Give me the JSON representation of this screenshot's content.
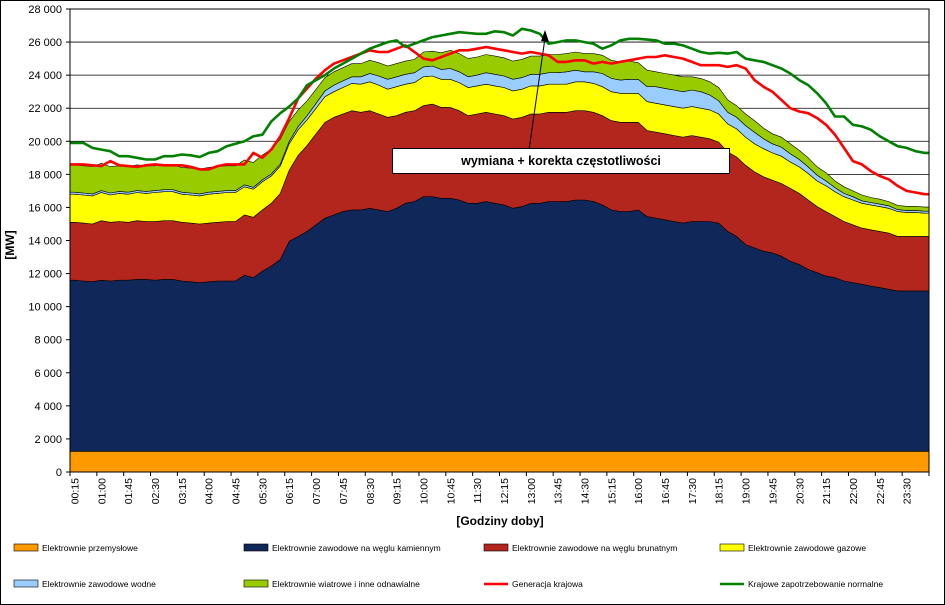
{
  "chart_data": {
    "type": "area",
    "xlabel": "[Godziny doby]",
    "ylabel": "[MW]",
    "ylim": [
      0,
      28000
    ],
    "yticks": [
      0,
      2000,
      4000,
      6000,
      8000,
      10000,
      12000,
      14000,
      16000,
      18000,
      20000,
      22000,
      24000,
      26000,
      28000
    ],
    "ytick_labels": [
      "0",
      "2 000",
      "4 000",
      "6 000",
      "8 000",
      "10 000",
      "12 000",
      "14 000",
      "16 000",
      "18 000",
      "20 000",
      "22 000",
      "24 000",
      "26 000",
      "28 000"
    ],
    "x_tick_labels": [
      "00:15",
      "01:00",
      "01:45",
      "02:30",
      "03:15",
      "04:00",
      "04:45",
      "05:30",
      "06:15",
      "07:00",
      "07:45",
      "08:30",
      "09:15",
      "10:00",
      "10:45",
      "11:30",
      "12:15",
      "13:00",
      "13:45",
      "14:30",
      "15:15",
      "16:00",
      "16:45",
      "17:30",
      "18:15",
      "19:00",
      "19:45",
      "20:30",
      "21:15",
      "22:00",
      "22:45",
      "23:30"
    ],
    "grid": true,
    "plot_background": "#ffffff",
    "annotation": "wymiana + korekta częstotliwości",
    "stack_series": [
      {
        "name": "Elektrownie przemysłowe",
        "color": "#ff9900",
        "values": [
          1250,
          1250,
          1250,
          1250,
          1250,
          1250,
          1250,
          1250,
          1250,
          1250,
          1250,
          1250,
          1250,
          1250,
          1250,
          1250,
          1250,
          1250,
          1250,
          1250,
          1250,
          1250,
          1250,
          1250,
          1250,
          1250,
          1250,
          1250,
          1250,
          1250,
          1250,
          1250,
          1250,
          1250,
          1250,
          1250,
          1250,
          1250,
          1250,
          1250,
          1250,
          1250,
          1250,
          1250,
          1250,
          1250,
          1250,
          1250,
          1250,
          1250,
          1250,
          1250,
          1250,
          1250,
          1250,
          1250,
          1250,
          1250,
          1250,
          1250,
          1250,
          1250,
          1250,
          1250,
          1250,
          1250,
          1250,
          1250,
          1250,
          1250,
          1250,
          1250,
          1250,
          1250,
          1250,
          1250,
          1250,
          1250,
          1250,
          1250,
          1250,
          1250,
          1250,
          1250,
          1250,
          1250,
          1250,
          1250,
          1250,
          1250,
          1250,
          1250,
          1250,
          1250,
          1250,
          1250
        ]
      },
      {
        "name": "Elektrownie zawodowe na węglu kamiennym",
        "color": "#10275a",
        "values": [
          10350,
          10300,
          10250,
          10350,
          10300,
          10350,
          10350,
          10400,
          10400,
          10350,
          10400,
          10400,
          10300,
          10250,
          10200,
          10250,
          10300,
          10300,
          10300,
          10650,
          10500,
          10900,
          11200,
          11600,
          12700,
          13000,
          13300,
          13700,
          14100,
          14300,
          14500,
          14600,
          14600,
          14700,
          14600,
          14500,
          14700,
          15000,
          15100,
          15400,
          15400,
          15300,
          15300,
          15200,
          15000,
          15000,
          15100,
          15000,
          14900,
          14700,
          14800,
          15000,
          15000,
          15100,
          15100,
          15100,
          15200,
          15200,
          15100,
          14900,
          14600,
          14500,
          14500,
          14600,
          14200,
          14100,
          14000,
          13900,
          13800,
          13900,
          13900,
          13900,
          13800,
          13300,
          13000,
          12500,
          12300,
          12100,
          12000,
          11800,
          11500,
          11300,
          11000,
          10800,
          10600,
          10500,
          10300,
          10200,
          10100,
          10000,
          9900,
          9800,
          9700,
          9700,
          9700,
          9700
        ]
      },
      {
        "name": "Elektrownie zawodowe na węglu brunatnym",
        "color": "#b3261e",
        "values": [
          3500,
          3500,
          3500,
          3600,
          3550,
          3550,
          3500,
          3550,
          3500,
          3550,
          3550,
          3550,
          3550,
          3550,
          3550,
          3550,
          3550,
          3600,
          3600,
          3650,
          3650,
          3700,
          3800,
          4000,
          4300,
          4900,
          5200,
          5500,
          5800,
          5900,
          5900,
          6000,
          5900,
          5900,
          5800,
          5700,
          5600,
          5500,
          5500,
          5500,
          5600,
          5500,
          5500,
          5400,
          5300,
          5400,
          5400,
          5400,
          5400,
          5400,
          5400,
          5400,
          5400,
          5400,
          5400,
          5400,
          5400,
          5400,
          5400,
          5400,
          5400,
          5400,
          5400,
          5300,
          5200,
          5200,
          5200,
          5200,
          5200,
          5200,
          5100,
          5000,
          4900,
          4800,
          4800,
          4800,
          4600,
          4500,
          4400,
          4400,
          4400,
          4300,
          4200,
          4000,
          3900,
          3700,
          3600,
          3500,
          3400,
          3400,
          3400,
          3400,
          3300,
          3300,
          3300,
          3300
        ]
      },
      {
        "name": "Elektrownie zawodowe gazowe",
        "color": "#ffff00",
        "values": [
          1700,
          1700,
          1700,
          1700,
          1650,
          1700,
          1700,
          1700,
          1700,
          1750,
          1750,
          1750,
          1700,
          1700,
          1700,
          1750,
          1750,
          1750,
          1750,
          1700,
          1700,
          1700,
          1650,
          1650,
          1600,
          1550,
          1550,
          1550,
          1550,
          1550,
          1600,
          1650,
          1700,
          1750,
          1750,
          1700,
          1750,
          1700,
          1700,
          1750,
          1700,
          1700,
          1700,
          1700,
          1700,
          1700,
          1700,
          1700,
          1700,
          1700,
          1700,
          1700,
          1700,
          1700,
          1700,
          1700,
          1750,
          1750,
          1750,
          1750,
          1750,
          1750,
          1750,
          1750,
          1750,
          1750,
          1750,
          1750,
          1750,
          1750,
          1750,
          1750,
          1700,
          1700,
          1700,
          1700,
          1700,
          1700,
          1650,
          1650,
          1600,
          1600,
          1600,
          1550,
          1550,
          1500,
          1500,
          1500,
          1500,
          1500,
          1500,
          1500,
          1500,
          1450,
          1450,
          1400
        ]
      },
      {
        "name": "Elektrownie zawodowe wodne",
        "color": "#99ccff",
        "values": [
          120,
          120,
          120,
          120,
          120,
          120,
          120,
          120,
          120,
          120,
          120,
          120,
          120,
          120,
          120,
          120,
          120,
          120,
          120,
          120,
          120,
          120,
          120,
          120,
          150,
          200,
          250,
          300,
          350,
          400,
          400,
          400,
          450,
          500,
          550,
          600,
          600,
          600,
          600,
          600,
          600,
          600,
          650,
          650,
          650,
          650,
          700,
          700,
          700,
          700,
          700,
          700,
          700,
          700,
          700,
          750,
          700,
          600,
          700,
          800,
          800,
          800,
          850,
          850,
          900,
          1000,
          1000,
          1000,
          1000,
          1000,
          1000,
          900,
          800,
          700,
          700,
          700,
          700,
          600,
          550,
          550,
          500,
          450,
          400,
          350,
          300,
          250,
          200,
          200,
          150,
          150,
          150,
          150,
          120,
          120,
          120,
          120
        ]
      },
      {
        "name": "Elektrownie wiatrowe i inne odnawialne",
        "color": "#99cc00",
        "values": [
          1650,
          1650,
          1650,
          1650,
          1600,
          1550,
          1550,
          1550,
          1550,
          1500,
          1500,
          1500,
          1500,
          1500,
          1500,
          1500,
          1500,
          1500,
          1500,
          1500,
          1500,
          1500,
          1500,
          1500,
          1200,
          1000,
          900,
          850,
          800,
          800,
          800,
          800,
          800,
          800,
          800,
          800,
          800,
          800,
          800,
          900,
          900,
          1000,
          1100,
          1100,
          1100,
          1100,
          1100,
          1100,
          1100,
          1100,
          1100,
          1100,
          1100,
          1100,
          1100,
          1100,
          1100,
          1100,
          1100,
          1100,
          1100,
          1100,
          1100,
          1000,
          1000,
          900,
          900,
          900,
          900,
          800,
          800,
          800,
          800,
          750,
          700,
          700,
          700,
          650,
          600,
          600,
          600,
          550,
          550,
          500,
          500,
          400,
          400,
          350,
          350,
          300,
          300,
          250,
          250,
          250,
          250,
          250
        ]
      }
    ],
    "line_series": [
      {
        "name": "Generacja krajowa",
        "color": "#ff0000",
        "values": [
          18600,
          18600,
          18550,
          18500,
          18800,
          18550,
          18500,
          18450,
          18550,
          18600,
          18550,
          18550,
          18550,
          18450,
          18300,
          18300,
          18500,
          18600,
          18600,
          18600,
          19300,
          19000,
          19500,
          20300,
          21400,
          22600,
          23200,
          23800,
          24300,
          24700,
          24900,
          25100,
          25300,
          25500,
          25400,
          25400,
          25600,
          25800,
          25400,
          25000,
          24900,
          25100,
          25300,
          25500,
          25500,
          25600,
          25700,
          25600,
          25500,
          25400,
          25300,
          25400,
          25300,
          25200,
          24800,
          24800,
          24900,
          24900,
          24700,
          24800,
          24700,
          24800,
          24900,
          25000,
          25100,
          25100,
          25200,
          25100,
          25000,
          24800,
          24600,
          24600,
          24600,
          24500,
          24600,
          24400,
          23700,
          23300,
          23000,
          22500,
          22000,
          21800,
          21700,
          21400,
          21000,
          20400,
          19600,
          18800,
          18600,
          18200,
          17900,
          17700,
          17300,
          17000,
          16900,
          16800
        ]
      },
      {
        "name": "Krajowe zapotrzebowanie normalne",
        "color": "#008000",
        "values": [
          19900,
          19900,
          19600,
          19500,
          19400,
          19100,
          19100,
          19000,
          18900,
          18900,
          19100,
          19100,
          19200,
          19150,
          19050,
          19300,
          19400,
          19700,
          19850,
          20000,
          20300,
          20400,
          21200,
          21700,
          22100,
          22600,
          23400,
          23700,
          24000,
          24400,
          24700,
          25000,
          25300,
          25600,
          25800,
          26000,
          26100,
          25700,
          25900,
          26100,
          26300,
          26400,
          26500,
          26600,
          26550,
          26500,
          26500,
          26650,
          26600,
          26400,
          26800,
          26700,
          26500,
          25900,
          26000,
          26100,
          26100,
          26000,
          25900,
          25600,
          25800,
          26100,
          26200,
          26200,
          26150,
          26100,
          25900,
          25900,
          25800,
          25600,
          25400,
          25300,
          25350,
          25300,
          25400,
          25000,
          24900,
          24800,
          24600,
          24400,
          24100,
          23700,
          23400,
          22900,
          22300,
          21500,
          21500,
          21000,
          20900,
          20700,
          20300,
          20000,
          19700,
          19600,
          19400,
          19300
        ]
      }
    ]
  },
  "legend": [
    {
      "label": "Elektrownie przemysłowe",
      "color": "#ff9900",
      "kind": "box"
    },
    {
      "label": "Elektrownie zawodowe na węglu kamiennym",
      "color": "#10275a",
      "kind": "box"
    },
    {
      "label": "Elektrownie zawodowe na węglu brunatnym",
      "color": "#b3261e",
      "kind": "box"
    },
    {
      "label": "Elektrownie zawodowe gazowe",
      "color": "#ffff00",
      "kind": "box"
    },
    {
      "label": "Elektrownie zawodowe wodne",
      "color": "#99ccff",
      "kind": "box"
    },
    {
      "label": "Elektrownie wiatrowe i inne odnawialne",
      "color": "#99cc00",
      "kind": "box"
    },
    {
      "label": "Generacja krajowa",
      "color": "#ff0000",
      "kind": "line"
    },
    {
      "label": "Krajowe zapotrzebowanie normalne",
      "color": "#008000",
      "kind": "line"
    }
  ]
}
